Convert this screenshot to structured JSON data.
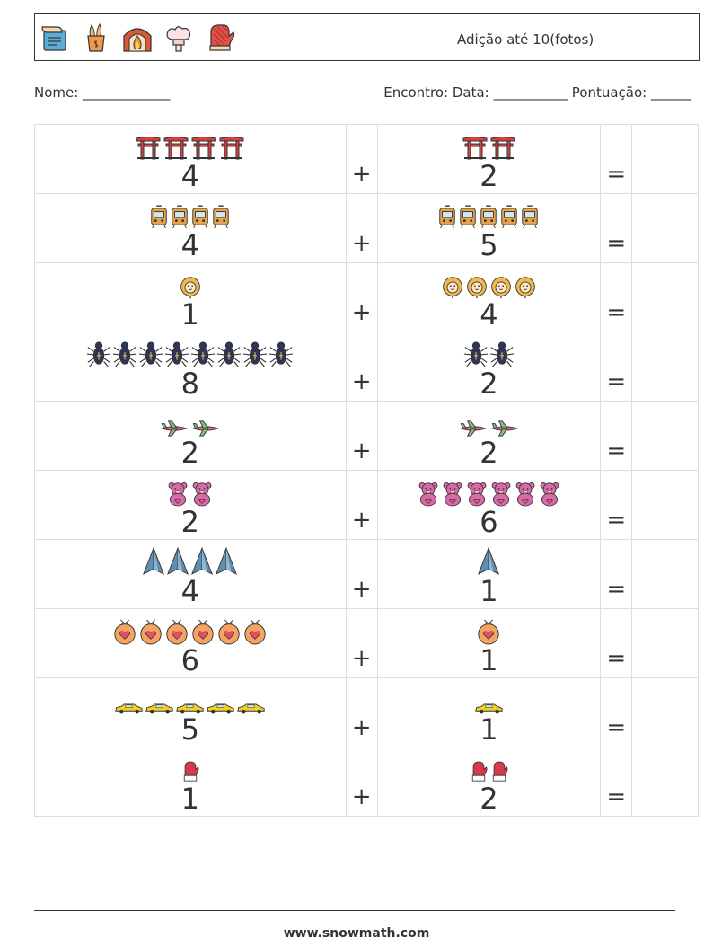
{
  "header": {
    "title": "Adição até 10(fotos)",
    "icons": [
      "clipboard-icon",
      "bread-basket-icon",
      "fireplace-icon",
      "chef-hat-icon",
      "oven-mitt-icon"
    ]
  },
  "info": {
    "name_label": "Nome: _____________",
    "right_label": "Encontro: Data: ___________  Pontuação: ______"
  },
  "operators": {
    "plus": "+",
    "equals": "="
  },
  "rows": [
    {
      "a": "4",
      "b": "2",
      "icon": "torii-gate-icon",
      "color": "#d94040"
    },
    {
      "a": "4",
      "b": "5",
      "icon": "tram-icon",
      "color": "#e3a24c"
    },
    {
      "a": "1",
      "b": "4",
      "icon": "lion-icon",
      "color": "#f2b84b"
    },
    {
      "a": "8",
      "b": "2",
      "icon": "spider-icon",
      "color": "#2e3557"
    },
    {
      "a": "2",
      "b": "2",
      "icon": "airplane-icon",
      "color": "#e0607e"
    },
    {
      "a": "2",
      "b": "6",
      "icon": "teddy-bear-icon",
      "color": "#d96aa8"
    },
    {
      "a": "4",
      "b": "1",
      "icon": "paper-plane-icon",
      "color": "#5f8fb0"
    },
    {
      "a": "6",
      "b": "1",
      "icon": "love-potion-icon",
      "color": "#f4a460"
    },
    {
      "a": "5",
      "b": "1",
      "icon": "taxi-car-icon",
      "color": "#f2d024"
    },
    {
      "a": "1",
      "b": "2",
      "icon": "mitten-icon",
      "color": "#d83a4a"
    }
  ],
  "footer": {
    "url": "www.snowmath.com"
  }
}
